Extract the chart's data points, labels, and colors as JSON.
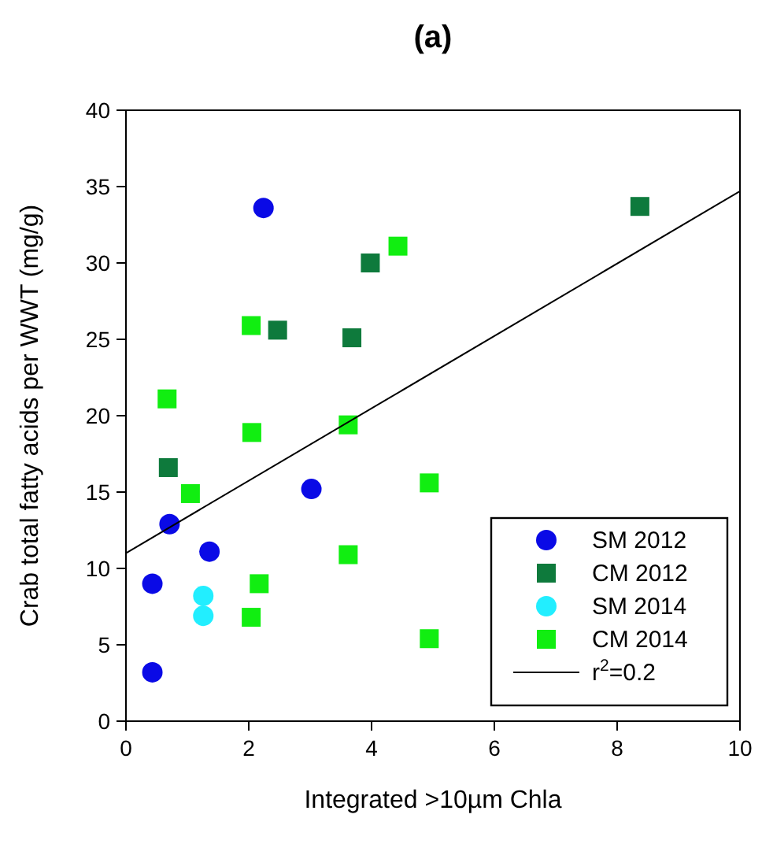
{
  "chart_data": {
    "type": "scatter",
    "title": "(a)",
    "xlabel": "Integrated >10µm Chla",
    "ylabel": "Crab total fatty acids per WWT (mg/g)",
    "xlim": [
      0,
      10
    ],
    "ylim": [
      0,
      40
    ],
    "xticks": [
      0,
      2,
      4,
      6,
      8,
      10
    ],
    "yticks": [
      0,
      5,
      10,
      15,
      20,
      25,
      30,
      35,
      40
    ],
    "grid": false,
    "legend": "bottom right",
    "series": [
      {
        "name": "SM 2012",
        "color": "#0a0ae6",
        "marker": "circle",
        "x": [
          2.24,
          3.02,
          0.71,
          1.36,
          0.43,
          0.43
        ],
        "values": [
          33.6,
          15.2,
          12.9,
          11.1,
          9.0,
          3.2
        ]
      },
      {
        "name": "CM 2012",
        "color": "#0e7a3c",
        "marker": "square",
        "x": [
          8.37,
          3.98,
          2.47,
          3.68,
          0.69
        ],
        "values": [
          33.7,
          30.0,
          25.6,
          25.1,
          16.6
        ]
      },
      {
        "name": "SM 2014",
        "color": "#22eeff",
        "marker": "circle",
        "x": [
          1.26,
          1.26
        ],
        "values": [
          8.2,
          6.9
        ]
      },
      {
        "name": "CM 2014",
        "color": "#11ee11",
        "marker": "square",
        "x": [
          4.43,
          2.04,
          0.67,
          2.05,
          3.62,
          1.05,
          4.94,
          3.62,
          2.17,
          2.04,
          4.94
        ],
        "values": [
          31.1,
          25.9,
          21.1,
          18.9,
          19.4,
          14.9,
          15.6,
          10.9,
          9.0,
          6.8,
          5.4
        ]
      },
      {
        "name": "r$^{2}$=0.2",
        "type": "line",
        "color": "#000000",
        "marker": "none",
        "line_style": "solid",
        "x": [
          0,
          10
        ],
        "values": [
          11.0,
          34.7
        ]
      }
    ]
  }
}
